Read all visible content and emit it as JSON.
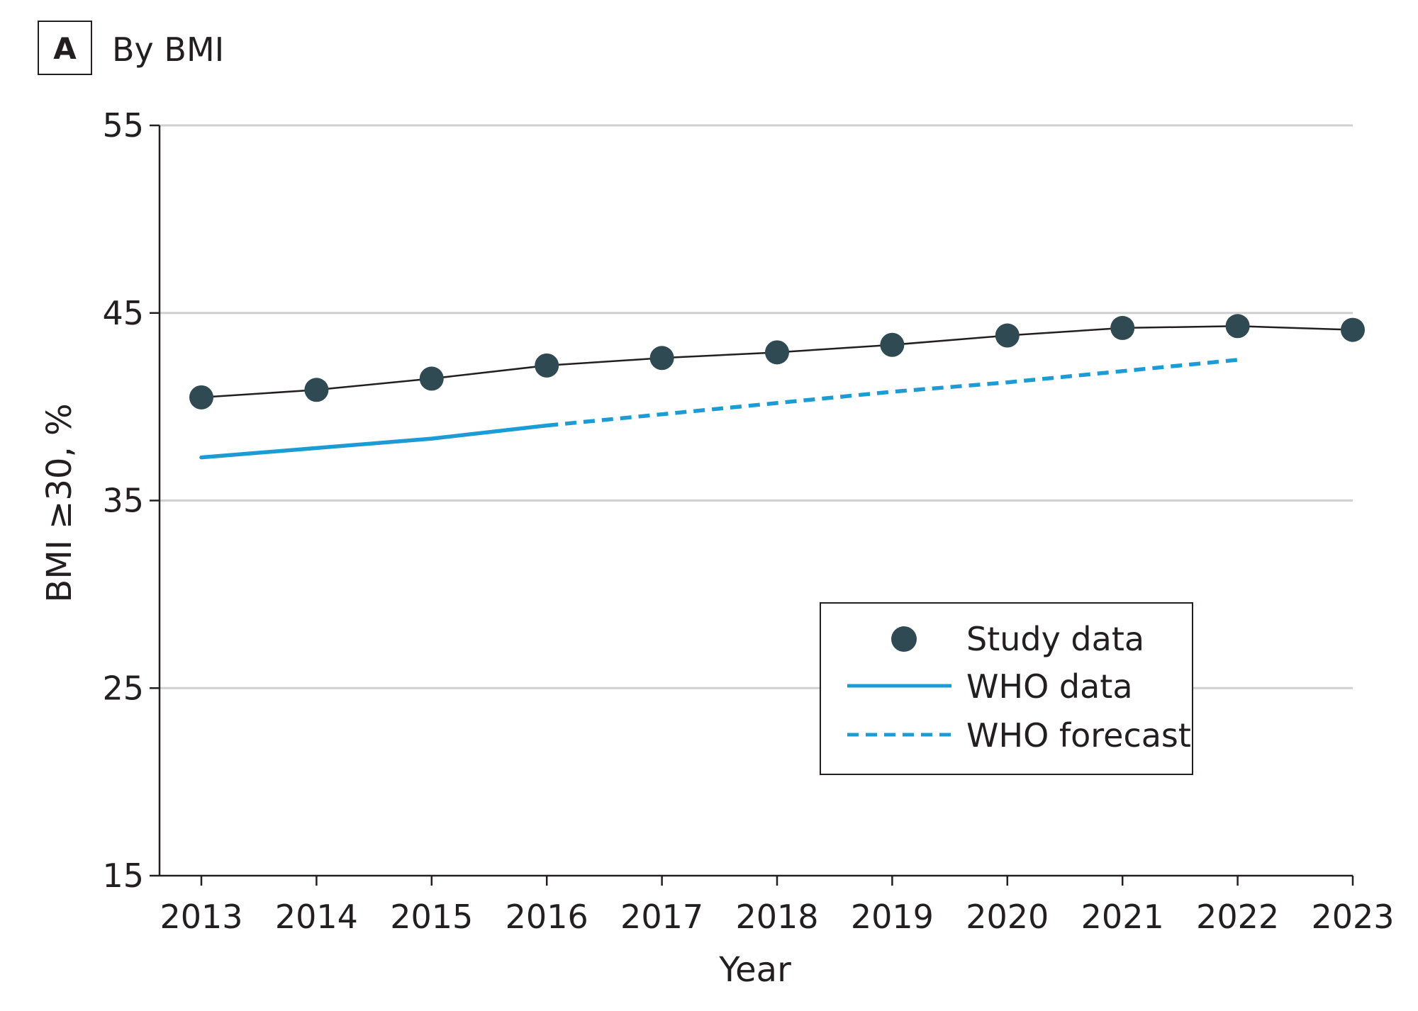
{
  "panel": {
    "letter": "A",
    "title": "By BMI"
  },
  "colors": {
    "study": "#2f4a53",
    "who": "#1b9cd4",
    "axis": "#231f20",
    "grid": "#d0d0d0"
  },
  "chart_data": {
    "type": "line",
    "xlabel": "Year",
    "ylabel": "BMI ≥30, %",
    "ylim": [
      15,
      55
    ],
    "yticks": [
      15,
      25,
      35,
      45,
      55
    ],
    "x": [
      2013,
      2014,
      2015,
      2016,
      2017,
      2018,
      2019,
      2020,
      2021,
      2022,
      2023
    ],
    "grid": "horizontal",
    "legend_position": "bottom-right",
    "series": [
      {
        "name": "Study data",
        "style": "line-with-markers",
        "x": [
          2013,
          2014,
          2015,
          2016,
          2017,
          2018,
          2019,
          2020,
          2021,
          2022,
          2023
        ],
        "values": [
          40.5,
          40.9,
          41.5,
          42.2,
          42.6,
          42.9,
          43.3,
          43.8,
          44.2,
          44.3,
          44.1
        ]
      },
      {
        "name": "WHO data",
        "style": "solid",
        "x": [
          2013,
          2014,
          2015,
          2016
        ],
        "values": [
          37.3,
          37.8,
          38.3,
          39.0
        ]
      },
      {
        "name": "WHO forecast",
        "style": "dashed",
        "x": [
          2016,
          2017,
          2018,
          2019,
          2020,
          2021,
          2022
        ],
        "values": [
          39.0,
          39.6,
          40.2,
          40.8,
          41.3,
          41.9,
          42.5
        ]
      }
    ]
  }
}
